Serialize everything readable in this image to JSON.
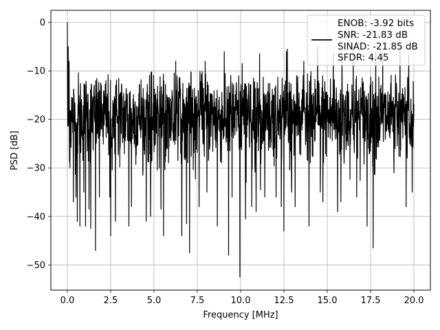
{
  "chart_data": {
    "type": "line",
    "title": "",
    "xlabel": "Frequency [MHz]",
    "ylabel": "PSD [dB]",
    "xlim": [
      -0.95,
      20.95
    ],
    "ylim": [
      -55.2,
      2.5
    ],
    "xticks": [
      0.0,
      2.5,
      5.0,
      7.5,
      10.0,
      12.5,
      15.0,
      17.5,
      20.0
    ],
    "xtick_labels": [
      "0.0",
      "2.5",
      "5.0",
      "7.5",
      "10.0",
      "12.5",
      "15.0",
      "17.5",
      "20.0"
    ],
    "yticks": [
      0,
      -10,
      -20,
      -30,
      -40,
      -50
    ],
    "ytick_labels": [
      "0",
      "−10",
      "−20",
      "−30",
      "−40",
      "−50"
    ],
    "grid": true,
    "line_color": "#000000",
    "legend": {
      "placement": "top-right",
      "entries": [
        "ENOB: -3.92 bits",
        "SNR: -21.83 dB",
        "SINAD: -21.85 dB",
        "SFDR: 4.45"
      ]
    },
    "series": [
      {
        "x_range": [
          0,
          20
        ],
        "num_points": 1600,
        "y_mean": -19.5,
        "y_typical_range": [
          -30,
          -12
        ],
        "y_max": 0,
        "spikes": [
          [
            0.0,
            0.0
          ],
          [
            0.05,
            -5.0
          ],
          [
            0.1,
            -8.0
          ],
          [
            0.15,
            -30.0
          ],
          [
            0.35,
            -37.0
          ],
          [
            0.5,
            -36.0
          ],
          [
            0.58,
            -41.0
          ],
          [
            0.73,
            -42.0
          ],
          [
            0.95,
            -35.0
          ],
          [
            1.05,
            -42.0
          ],
          [
            1.25,
            -38.5
          ],
          [
            1.35,
            -42.5
          ],
          [
            1.62,
            -47.0
          ],
          [
            1.85,
            -36.0
          ],
          [
            2.45,
            -36.0
          ],
          [
            2.5,
            -44.0
          ],
          [
            2.78,
            -41.0
          ],
          [
            3.55,
            -42.0
          ],
          [
            3.7,
            -38.0
          ],
          [
            4.55,
            -41.0
          ],
          [
            4.8,
            -40.0
          ],
          [
            5.4,
            -38.5
          ],
          [
            5.55,
            -44.0
          ],
          [
            6.6,
            -44.0
          ],
          [
            6.88,
            -41.5
          ],
          [
            7.05,
            -47.5
          ],
          [
            7.6,
            -38.0
          ],
          [
            8.05,
            -35.0
          ],
          [
            8.65,
            -42.0
          ],
          [
            9.3,
            -48.0
          ],
          [
            9.5,
            -36.0
          ],
          [
            9.95,
            -52.5
          ],
          [
            10.28,
            -40.5
          ],
          [
            10.65,
            -38.0
          ],
          [
            10.9,
            -39.0
          ],
          [
            11.15,
            -34.5
          ],
          [
            11.4,
            -36.0
          ],
          [
            12.05,
            -36.0
          ],
          [
            12.35,
            -38.0
          ],
          [
            12.5,
            -43.0
          ],
          [
            12.95,
            -35.0
          ],
          [
            13.15,
            -38.0
          ],
          [
            13.95,
            -42.0
          ],
          [
            14.6,
            -35.0
          ],
          [
            14.75,
            -37.0
          ],
          [
            15.6,
            -39.0
          ],
          [
            15.78,
            -37.0
          ],
          [
            16.7,
            -36.0
          ],
          [
            17.3,
            -42.0
          ],
          [
            17.65,
            -46.5
          ],
          [
            18.2,
            -40.0
          ],
          [
            18.85,
            -31.0
          ],
          [
            19.55,
            -38.0
          ],
          [
            19.9,
            -35.0
          ],
          [
            9.05,
            -6.0
          ],
          [
            11.1,
            -6.5
          ],
          [
            12.65,
            -6.0
          ],
          [
            12.7,
            -5.5
          ],
          [
            14.45,
            -5.0
          ],
          [
            15.35,
            -6.5
          ],
          [
            15.85,
            -6.5
          ],
          [
            16.5,
            -5.5
          ],
          [
            17.8,
            -6.0
          ],
          [
            18.2,
            -6.5
          ],
          [
            19.2,
            -5.0
          ],
          [
            19.7,
            -6.5
          ],
          [
            6.25,
            -8.0
          ],
          [
            7.95,
            -8.0
          ],
          [
            10.1,
            -8.5
          ],
          [
            13.65,
            -8.0
          ]
        ]
      }
    ]
  }
}
